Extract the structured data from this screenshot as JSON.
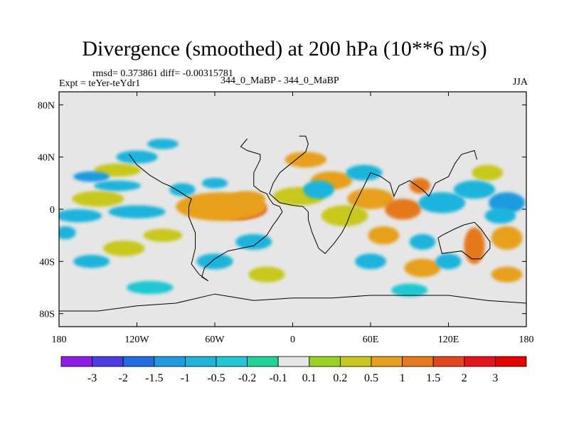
{
  "chart_data": {
    "type": "heatmap",
    "title": "Divergence (smoothed) at 200 hPa (10**6 m/s)",
    "stats": "rmsd= 0.373861  diff= -0.00315781",
    "expt_label": "Expt = teYer-teYdr1",
    "models": "344_0_MaBP - 344_0_MaBP",
    "season": "JJA",
    "projection": "cylindrical equidistant, lon -180..180, lat -90..90",
    "x_ticks": [
      {
        "value": -180,
        "label": "180"
      },
      {
        "value": -120,
        "label": "120W"
      },
      {
        "value": -60,
        "label": "60W"
      },
      {
        "value": 0,
        "label": "0"
      },
      {
        "value": 60,
        "label": "60E"
      },
      {
        "value": 120,
        "label": "120E"
      },
      {
        "value": 180,
        "label": "180"
      }
    ],
    "y_ticks": [
      {
        "value": 80,
        "label": "80N"
      },
      {
        "value": 40,
        "label": "40N"
      },
      {
        "value": 0,
        "label": "0"
      },
      {
        "value": -40,
        "label": "40S"
      },
      {
        "value": -80,
        "label": "80S"
      }
    ],
    "xlim": [
      -180,
      180
    ],
    "ylim": [
      -90,
      90
    ],
    "missing_color": "#e6e6e6",
    "colorbar": {
      "labels": [
        "-3",
        "-2",
        "-1.5",
        "-1",
        "-0.5",
        "-0.2",
        "-0.1",
        "0.1",
        "0.2",
        "0.5",
        "1",
        "1.5",
        "2",
        "3"
      ],
      "colors": [
        "#8c1ee6",
        "#4b3ce6",
        "#1f6fe0",
        "#1e9be0",
        "#1fb4dc",
        "#1fc8d2",
        "#1fd29b",
        "#e6e6e6",
        "#9bd21f",
        "#c8c81f",
        "#e6a01e",
        "#e6781e",
        "#e6461e",
        "#e6141e",
        "#e60000"
      ]
    },
    "features": [
      {
        "lon": -40,
        "lat": -2,
        "rx": 10,
        "ry": 5,
        "level": 14
      },
      {
        "lon": -42,
        "lat": 0,
        "rx": 22,
        "ry": 8,
        "level": 12
      },
      {
        "lon": -55,
        "lat": 2,
        "rx": 35,
        "ry": 11,
        "level": 10
      },
      {
        "lon": -35,
        "lat": 8,
        "rx": 14,
        "ry": 6,
        "level": 10
      },
      {
        "lon": 30,
        "lat": 22,
        "rx": 16,
        "ry": 7,
        "level": 10
      },
      {
        "lon": 10,
        "lat": 38,
        "rx": 16,
        "ry": 6,
        "level": 10
      },
      {
        "lon": 60,
        "lat": 8,
        "rx": 18,
        "ry": 8,
        "level": 10
      },
      {
        "lon": 85,
        "lat": 0,
        "rx": 14,
        "ry": 8,
        "level": 11
      },
      {
        "lon": 98,
        "lat": 18,
        "rx": 8,
        "ry": 6,
        "level": 11
      },
      {
        "lon": 40,
        "lat": -5,
        "rx": 18,
        "ry": 8,
        "level": 9
      },
      {
        "lon": 5,
        "lat": 10,
        "rx": 20,
        "ry": 7,
        "level": 9
      },
      {
        "lon": 140,
        "lat": -28,
        "rx": 8,
        "ry": 14,
        "level": 11
      },
      {
        "lon": 165,
        "lat": -22,
        "rx": 12,
        "ry": 9,
        "level": 10
      },
      {
        "lon": 165,
        "lat": -50,
        "rx": 12,
        "ry": 6,
        "level": 10
      },
      {
        "lon": 100,
        "lat": -45,
        "rx": 14,
        "ry": 7,
        "level": 10
      },
      {
        "lon": 70,
        "lat": -20,
        "rx": 12,
        "ry": 7,
        "level": 10
      },
      {
        "lon": -150,
        "lat": 8,
        "rx": 20,
        "ry": 6,
        "level": 9
      },
      {
        "lon": -135,
        "lat": 30,
        "rx": 18,
        "ry": 5,
        "level": 9
      },
      {
        "lon": -100,
        "lat": -20,
        "rx": 15,
        "ry": 5,
        "level": 9
      },
      {
        "lon": -20,
        "lat": -50,
        "rx": 14,
        "ry": 6,
        "level": 9
      },
      {
        "lon": -130,
        "lat": -30,
        "rx": 16,
        "ry": 6,
        "level": 9
      },
      {
        "lon": 150,
        "lat": 28,
        "rx": 12,
        "ry": 6,
        "level": 9
      },
      {
        "lon": -165,
        "lat": -5,
        "rx": 18,
        "ry": 5,
        "level": 4
      },
      {
        "lon": -120,
        "lat": -2,
        "rx": 22,
        "ry": 5,
        "level": 4
      },
      {
        "lon": -135,
        "lat": 18,
        "rx": 18,
        "ry": 4,
        "level": 4
      },
      {
        "lon": -120,
        "lat": 40,
        "rx": 16,
        "ry": 5,
        "level": 4
      },
      {
        "lon": -155,
        "lat": 25,
        "rx": 14,
        "ry": 4,
        "level": 3
      },
      {
        "lon": -85,
        "lat": 15,
        "rx": 10,
        "ry": 5,
        "level": 4
      },
      {
        "lon": 20,
        "lat": 15,
        "rx": 12,
        "ry": 7,
        "level": 4
      },
      {
        "lon": 115,
        "lat": 5,
        "rx": 18,
        "ry": 8,
        "level": 4
      },
      {
        "lon": 140,
        "lat": 15,
        "rx": 16,
        "ry": 7,
        "level": 4
      },
      {
        "lon": 165,
        "lat": 5,
        "rx": 14,
        "ry": 8,
        "level": 3
      },
      {
        "lon": 100,
        "lat": -25,
        "rx": 10,
        "ry": 6,
        "level": 4
      },
      {
        "lon": 120,
        "lat": -40,
        "rx": 10,
        "ry": 6,
        "level": 4
      },
      {
        "lon": -155,
        "lat": -40,
        "rx": 14,
        "ry": 5,
        "level": 4
      },
      {
        "lon": -60,
        "lat": -40,
        "rx": 14,
        "ry": 6,
        "level": 4
      },
      {
        "lon": 60,
        "lat": -40,
        "rx": 12,
        "ry": 6,
        "level": 4
      },
      {
        "lon": -30,
        "lat": -25,
        "rx": 14,
        "ry": 6,
        "level": 4
      },
      {
        "lon": 55,
        "lat": 28,
        "rx": 14,
        "ry": 6,
        "level": 4
      },
      {
        "lon": -100,
        "lat": 50,
        "rx": 12,
        "ry": 4,
        "level": 4
      },
      {
        "lon": -60,
        "lat": 20,
        "rx": 10,
        "ry": 4,
        "level": 4
      },
      {
        "lon": 160,
        "lat": -5,
        "rx": 12,
        "ry": 6,
        "level": 4
      },
      {
        "lon": -175,
        "lat": -18,
        "rx": 8,
        "ry": 5,
        "level": 4
      },
      {
        "lon": -110,
        "lat": -60,
        "rx": 18,
        "ry": 5,
        "level": 5
      },
      {
        "lon": 90,
        "lat": -62,
        "rx": 14,
        "ry": 5,
        "level": 5
      }
    ],
    "continent_outlines": [
      {
        "name": "americas",
        "points": [
          [
            -35,
            54
          ],
          [
            -40,
            48
          ],
          [
            -35,
            45
          ],
          [
            -25,
            42
          ],
          [
            -25,
            38
          ],
          [
            -30,
            28
          ],
          [
            -30,
            18
          ],
          [
            -25,
            14
          ],
          [
            -20,
            12
          ],
          [
            -18,
            8
          ],
          [
            -15,
            4
          ],
          [
            -10,
            2
          ],
          [
            -8,
            -2
          ],
          [
            -12,
            -8
          ],
          [
            -15,
            -12
          ],
          [
            -20,
            -20
          ],
          [
            -30,
            -28
          ],
          [
            -40,
            -30
          ],
          [
            -50,
            -32
          ],
          [
            -60,
            -38
          ],
          [
            -68,
            -45
          ],
          [
            -70,
            -52
          ],
          [
            -65,
            -55
          ],
          [
            -72,
            -50
          ],
          [
            -78,
            -42
          ],
          [
            -75,
            -30
          ],
          [
            -75,
            -18
          ],
          [
            -80,
            -6
          ],
          [
            -80,
            2
          ],
          [
            -78,
            8
          ],
          [
            -82,
            10
          ],
          [
            -88,
            14
          ],
          [
            -95,
            18
          ],
          [
            -100,
            20
          ],
          [
            -110,
            26
          ],
          [
            -120,
            34
          ],
          [
            -126,
            42
          ]
        ]
      },
      {
        "name": "africa_eurasia",
        "points": [
          [
            5,
            56
          ],
          [
            10,
            56
          ],
          [
            12,
            50
          ],
          [
            10,
            44
          ],
          [
            5,
            40
          ],
          [
            0,
            36
          ],
          [
            -5,
            32
          ],
          [
            -10,
            28
          ],
          [
            -15,
            20
          ],
          [
            -18,
            12
          ],
          [
            -10,
            5
          ],
          [
            0,
            3
          ],
          [
            8,
            2
          ],
          [
            12,
            -2
          ],
          [
            12,
            -8
          ],
          [
            15,
            -18
          ],
          [
            20,
            -30
          ],
          [
            25,
            -34
          ],
          [
            32,
            -26
          ],
          [
            38,
            -18
          ],
          [
            42,
            -10
          ],
          [
            45,
            -2
          ],
          [
            52,
            12
          ],
          [
            57,
            22
          ],
          [
            60,
            28
          ],
          [
            68,
            25
          ],
          [
            75,
            20
          ],
          [
            78,
            10
          ],
          [
            82,
            18
          ],
          [
            90,
            22
          ],
          [
            100,
            15
          ],
          [
            105,
            10
          ],
          [
            110,
            20
          ],
          [
            120,
            25
          ],
          [
            125,
            35
          ],
          [
            130,
            42
          ],
          [
            140,
            45
          ],
          [
            142,
            38
          ]
        ]
      },
      {
        "name": "australia",
        "points": [
          [
            112,
            -22
          ],
          [
            115,
            -34
          ],
          [
            130,
            -32
          ],
          [
            138,
            -38
          ],
          [
            145,
            -38
          ],
          [
            152,
            -30
          ],
          [
            152,
            -25
          ],
          [
            145,
            -15
          ],
          [
            140,
            -10
          ],
          [
            132,
            -12
          ],
          [
            125,
            -15
          ],
          [
            115,
            -20
          ],
          [
            112,
            -22
          ]
        ]
      },
      {
        "name": "antarctica",
        "points": [
          [
            -180,
            -78
          ],
          [
            -150,
            -78
          ],
          [
            -120,
            -74
          ],
          [
            -90,
            -72
          ],
          [
            -60,
            -65
          ],
          [
            -30,
            -70
          ],
          [
            0,
            -68
          ],
          [
            30,
            -68
          ],
          [
            60,
            -66
          ],
          [
            90,
            -66
          ],
          [
            120,
            -66
          ],
          [
            150,
            -70
          ],
          [
            180,
            -72
          ]
        ]
      }
    ]
  }
}
